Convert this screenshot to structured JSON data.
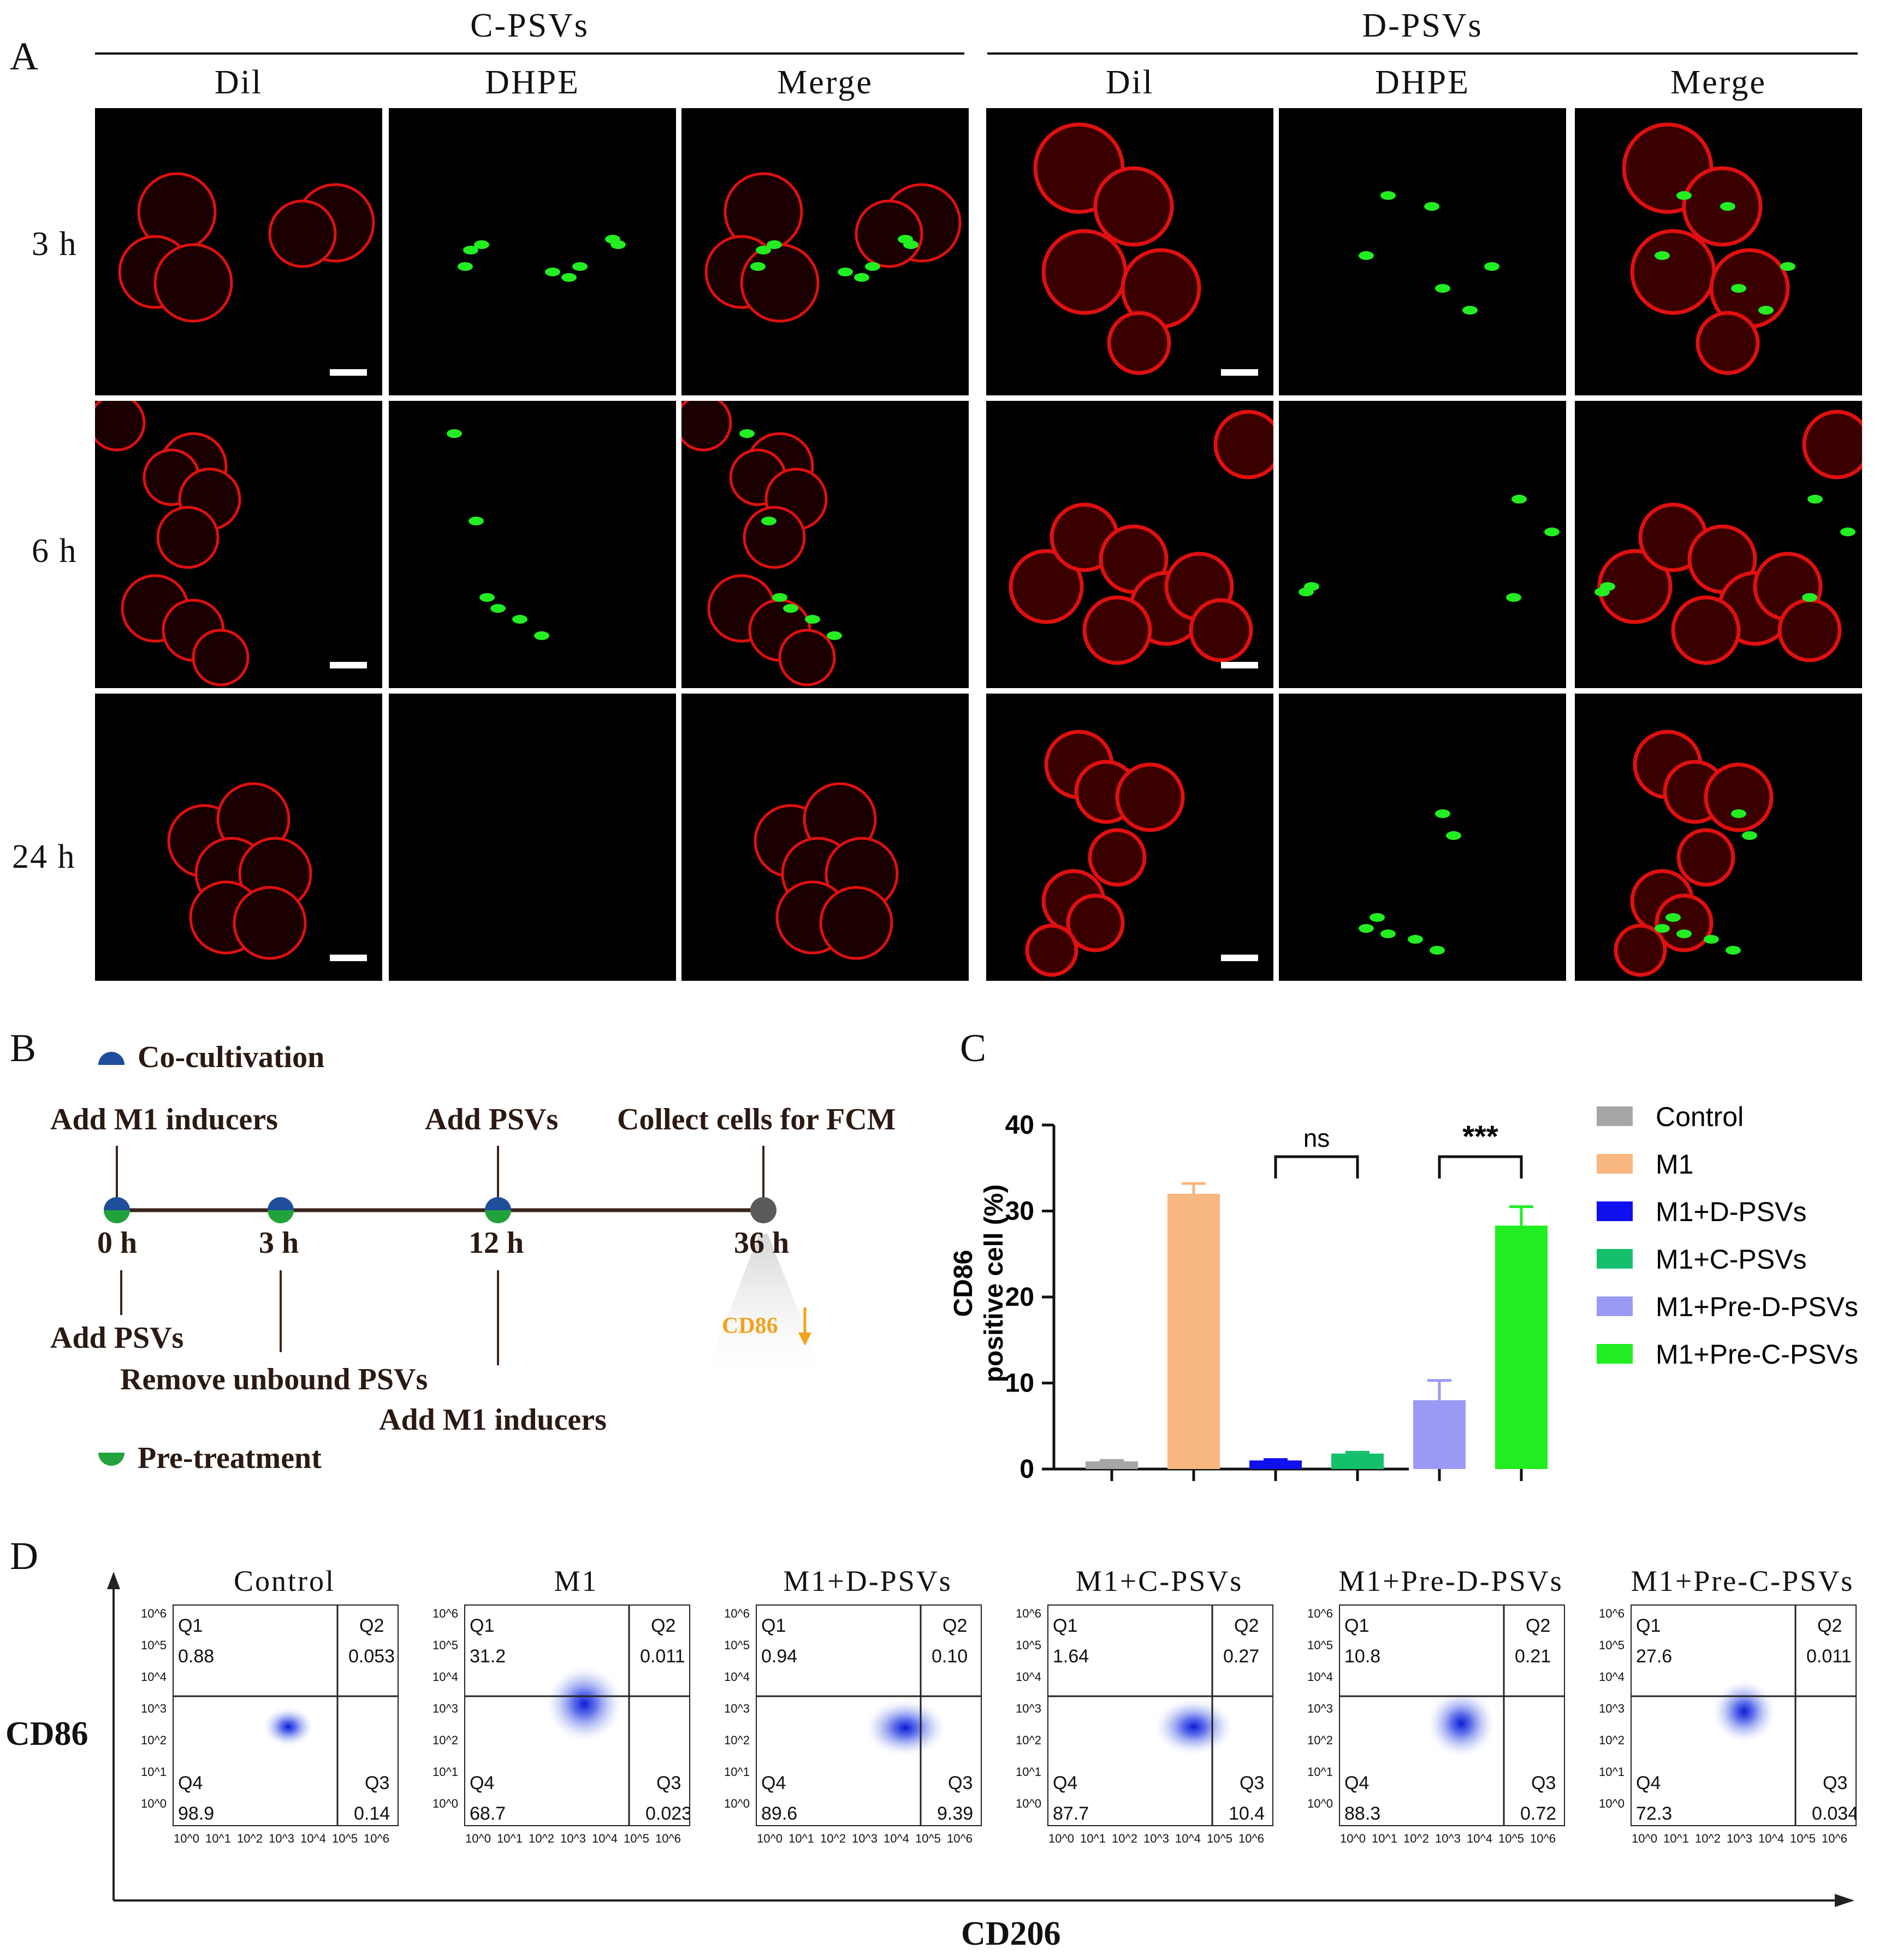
{
  "panels": {
    "a": "A",
    "b": "B",
    "c": "C",
    "d": "D"
  },
  "panel_a": {
    "groups": [
      "C-PSVs",
      "D-PSVs"
    ],
    "channels": [
      "Dil",
      "DHPE",
      "Merge"
    ],
    "times": [
      "3 h",
      "6 h",
      "24 h"
    ]
  },
  "panel_b": {
    "legend_co": "Co-cultivation",
    "legend_pre": "Pre-treatment",
    "above": [
      "Add M1 inducers",
      "Add PSVs",
      "Collect cells for FCM"
    ],
    "times": [
      "0 h",
      "3 h",
      "12 h",
      "36 h"
    ],
    "below": [
      "Add PSVs",
      "Remove unbound PSVs",
      "Add M1 inducers"
    ],
    "cd86_note": "CD86",
    "colors": {
      "co": "#1f4e9c",
      "pre": "#22a23a",
      "end": "#5a5a5a",
      "line": "#3a241b",
      "note": "#f4a21a"
    }
  },
  "chart_data": {
    "type": "bar",
    "title": "",
    "ylabel_line1": "CD86",
    "ylabel_line2": "positive cell (%)",
    "ylim": [
      0,
      40
    ],
    "yticks": [
      "0",
      "10",
      "20",
      "30",
      "40"
    ],
    "categories": [
      "Control",
      "M1",
      "M1+D-PSVs",
      "M1+C-PSVs",
      "M1+Pre-D-PSVs",
      "M1+Pre-C-PSVs"
    ],
    "values": [
      0.9,
      32.0,
      1.0,
      1.8,
      8.0,
      28.3
    ],
    "errors": [
      0.1,
      1.2,
      0.1,
      0.15,
      2.3,
      2.2
    ],
    "colors": [
      "#a6a6a6",
      "#f9b781",
      "#1010ee",
      "#14c06c",
      "#9a9af5",
      "#20ee20"
    ],
    "significance": [
      {
        "from": 2,
        "to": 3,
        "label": "ns"
      },
      {
        "from": 4,
        "to": 5,
        "label": "***"
      }
    ],
    "legend_position": "right"
  },
  "panel_d": {
    "ylabel": "CD86",
    "xlabel": "CD206",
    "plots": [
      {
        "title": "Control",
        "q1": "0.88",
        "q2": "0.053",
        "q3": "0.14",
        "q4": "98.9"
      },
      {
        "title": "M1",
        "q1": "31.2",
        "q2": "0.011",
        "q3": "0.023",
        "q4": "68.7"
      },
      {
        "title": "M1+D-PSVs",
        "q1": "0.94",
        "q2": "0.10",
        "q3": "9.39",
        "q4": "89.6"
      },
      {
        "title": "M1+C-PSVs",
        "q1": "1.64",
        "q2": "0.27",
        "q3": "10.4",
        "q4": "87.7"
      },
      {
        "title": "M1+Pre-D-PSVs",
        "q1": "10.8",
        "q2": "0.21",
        "q3": "0.72",
        "q4": "88.3"
      },
      {
        "title": "M1+Pre-C-PSVs",
        "q1": "27.6",
        "q2": "0.011",
        "q3": "0.034",
        "q4": "72.3"
      }
    ],
    "quadrant_names": [
      "Q1",
      "Q2",
      "Q3",
      "Q4"
    ],
    "axis_ticks_y": [
      "10^6",
      "10^5",
      "10^4",
      "10^3",
      "10^2",
      "10^1",
      "10^0"
    ],
    "axis_ticks_x": [
      "10^0",
      "10^1",
      "10^2",
      "10^3",
      "10^4",
      "10^5",
      "10^6"
    ]
  }
}
